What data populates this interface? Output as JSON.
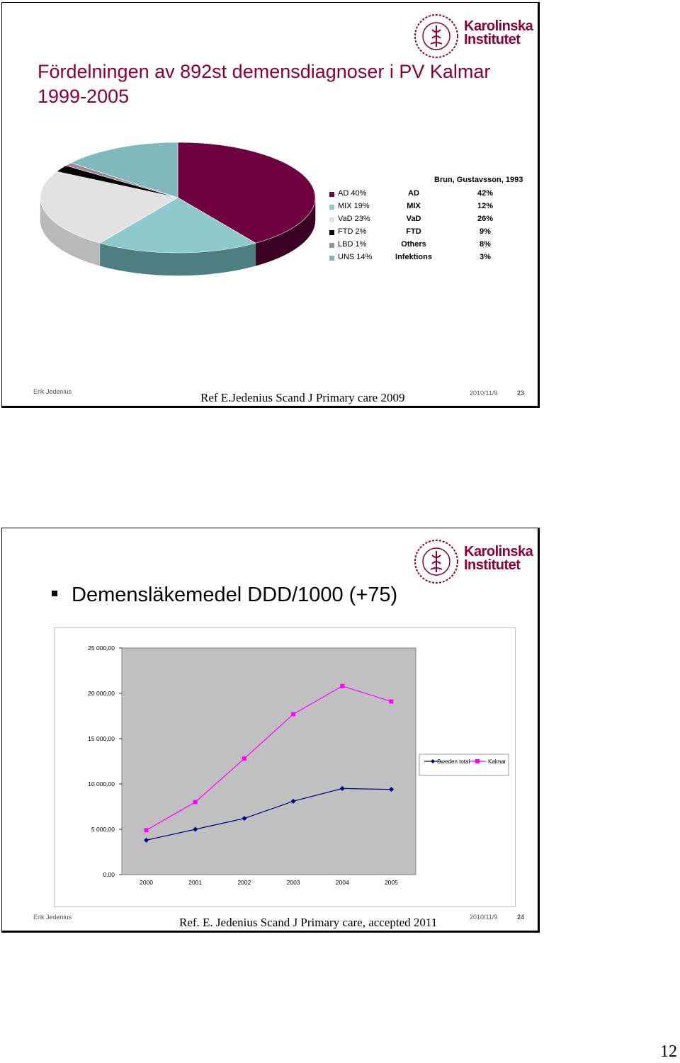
{
  "slide1": {
    "title": "Fördelningen av 892st demensdiagnoser i PV Kalmar 1999-2005",
    "logo": {
      "line1": "Karolinska",
      "line2": "Institutet",
      "seal": "ki-seal-logo"
    },
    "pie": {
      "segments": [
        {
          "label": "AD 40%",
          "value": 40,
          "color": "#6e0040",
          "side": "#3a0022"
        },
        {
          "label": "MIX 19%",
          "value": 19,
          "color": "#8ec9cb",
          "side": "#4d7f81"
        },
        {
          "label": "VaD 23%",
          "value": 23,
          "color": "#e2e2e2",
          "side": "#b9b9b9"
        },
        {
          "label": "FTD 2%",
          "value": 2,
          "color": "#000000",
          "side": "#000000"
        },
        {
          "label": "LBD 1%",
          "value": 1,
          "color": "#a08a96",
          "side": "#6f5f68"
        },
        {
          "label": "UNS 14%",
          "value": 14,
          "color": "#80b9bb",
          "side": "#507c7e"
        }
      ]
    },
    "source_header": "Brun, Gustavsson, 1993",
    "comparison": [
      {
        "cat": "AD",
        "pct": "42%"
      },
      {
        "cat": "MIX",
        "pct": "12%"
      },
      {
        "cat": "VaD",
        "pct": "26%"
      },
      {
        "cat": "FTD",
        "pct": "9%"
      },
      {
        "cat": "Others",
        "pct": "8%"
      },
      {
        "cat": "Infektions",
        "pct": "3%"
      }
    ],
    "footer": {
      "author": "Erik Jedenius",
      "ref": "Ref E.Jedenius Scand J Primary care 2009",
      "date": "2010/11/9",
      "num": "23"
    }
  },
  "slide2": {
    "title": "Demensläkemedel DDD/1000 (+75)",
    "logo": {
      "line1": "Karolinska",
      "line2": "Institutet",
      "seal": "ki-seal-logo"
    },
    "footer": {
      "author": "Erik Jedenius",
      "ref": "Ref. E. Jedenius Scand J Primary care, accepted 2011",
      "date": "2010/11/9",
      "num": "24"
    }
  },
  "chart_data": {
    "type": "line",
    "categories": [
      "2000",
      "2001",
      "2002",
      "2003",
      "2004",
      "2005"
    ],
    "ylim": [
      0,
      25000
    ],
    "yticks": [
      "0,00",
      "5 000,00",
      "10 000,00",
      "15 000,00",
      "20 000,00",
      "25 000,00"
    ],
    "grid": false,
    "legend": "right",
    "plot_bg": "#c0c0c0",
    "series": [
      {
        "name": "Sweden total",
        "color": "#000080",
        "marker": "diamond",
        "values": [
          3800,
          5000,
          6200,
          8100,
          9500,
          9400
        ]
      },
      {
        "name": "Kalmar",
        "color": "#ff00ff",
        "marker": "square",
        "values": [
          4900,
          8000,
          12800,
          17700,
          20800,
          19100
        ]
      }
    ]
  },
  "page_number": "12"
}
